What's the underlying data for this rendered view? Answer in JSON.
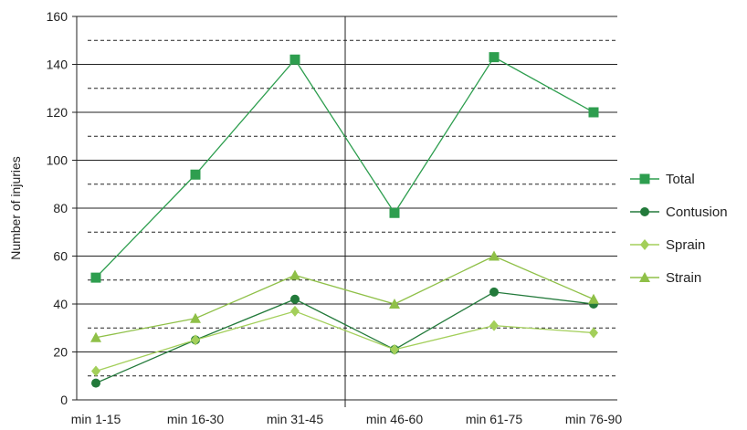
{
  "chart_data": {
    "type": "line",
    "title": "",
    "xlabel": "",
    "ylabel": "Number of injuries",
    "categories": [
      "min 1-15",
      "min 16-30",
      "min 31-45",
      "min 46-60",
      "min 61-75",
      "min 76-90"
    ],
    "ylim": [
      0,
      160
    ],
    "yticks": [
      0,
      20,
      40,
      60,
      80,
      100,
      120,
      140,
      160
    ],
    "grid": true,
    "half_time_divider": true,
    "legend_position": "right",
    "series": [
      {
        "name": "Total",
        "marker": "square",
        "color": "#2e9e4f",
        "values": [
          51,
          94,
          142,
          78,
          143,
          120
        ]
      },
      {
        "name": "Contusion",
        "marker": "circle",
        "color": "#237a3b",
        "values": [
          7,
          25,
          42,
          21,
          45,
          40
        ]
      },
      {
        "name": "Sprain",
        "marker": "diamond",
        "color": "#a3cf5a",
        "values": [
          12,
          25,
          37,
          21,
          31,
          28
        ]
      },
      {
        "name": "Strain",
        "marker": "triangle",
        "color": "#8fc048",
        "values": [
          26,
          34,
          52,
          40,
          60,
          42
        ]
      }
    ]
  }
}
